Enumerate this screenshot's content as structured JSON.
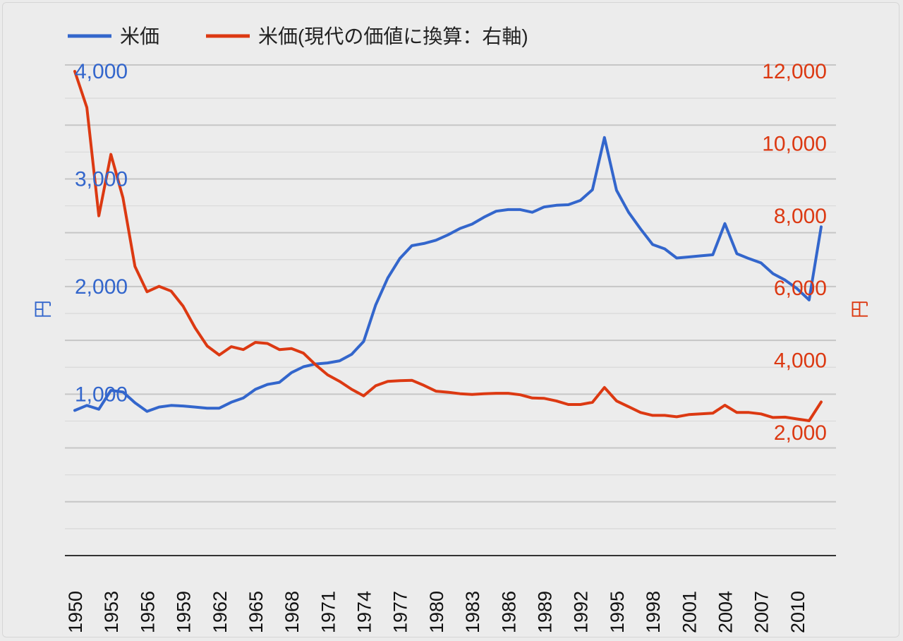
{
  "chart_data": {
    "type": "line",
    "legend": {
      "position": "top-left",
      "items": [
        {
          "label": "米価",
          "color": "#3366cc"
        },
        {
          "label": "米価(現代の価値に換算：右軸)",
          "color": "#dc3912"
        }
      ]
    },
    "x": [
      1950,
      1951,
      1952,
      1953,
      1954,
      1955,
      1956,
      1957,
      1958,
      1959,
      1960,
      1961,
      1962,
      1963,
      1964,
      1965,
      1966,
      1967,
      1968,
      1969,
      1970,
      1971,
      1972,
      1973,
      1974,
      1975,
      1976,
      1977,
      1978,
      1979,
      1980,
      1981,
      1982,
      1983,
      1984,
      1985,
      1986,
      1987,
      1988,
      1989,
      1990,
      1991,
      1992,
      1993,
      1994,
      1995,
      1996,
      1997,
      1998,
      1999,
      2000,
      2001,
      2002,
      2003,
      2004,
      2005,
      2006,
      2007,
      2008,
      2009,
      2010,
      2011,
      2012
    ],
    "x_tick_labels": [
      "1950",
      "1953",
      "1956",
      "1959",
      "1962",
      "1965",
      "1968",
      "1971",
      "1974",
      "1977",
      "1980",
      "1983",
      "1986",
      "1989",
      "1992",
      "1995",
      "1998",
      "2001",
      "2004",
      "2007",
      "2010"
    ],
    "y_left": {
      "label": "円",
      "ticks": [
        "1,000",
        "2,000",
        "3,000",
        "4,000"
      ],
      "range": [
        -500,
        4000
      ],
      "color": "#3366cc"
    },
    "y_right": {
      "label": "円",
      "ticks": [
        "2,000",
        "4,000",
        "6,000",
        "8,000",
        "10,000",
        "12,000"
      ],
      "range": [
        -1400,
        12000
      ],
      "color": "#dc3912"
    },
    "grid": true,
    "series": [
      {
        "name": "米価",
        "axis": "left",
        "color": "#3366cc",
        "values": [
          849,
          895,
          860,
          1035,
          1020,
          920,
          840,
          880,
          895,
          890,
          880,
          870,
          870,
          925,
          965,
          1045,
          1090,
          1110,
          1200,
          1255,
          1280,
          1290,
          1310,
          1370,
          1490,
          1830,
          2080,
          2260,
          2380,
          2400,
          2430,
          2480,
          2540,
          2580,
          2645,
          2700,
          2715,
          2715,
          2690,
          2740,
          2755,
          2760,
          2800,
          2900,
          3385,
          2895,
          2690,
          2535,
          2390,
          2350,
          2265,
          2275,
          2285,
          2295,
          2585,
          2305,
          2260,
          2220,
          2120,
          2060,
          1980,
          1875,
          2555
        ]
      },
      {
        "name": "米価(現代の価値に換算：右軸)",
        "axis": "right",
        "color": "#dc3912",
        "values": [
          12000,
          11000,
          8000,
          9700,
          8500,
          6600,
          5900,
          6050,
          5920,
          5500,
          4900,
          4400,
          4150,
          4380,
          4300,
          4500,
          4470,
          4300,
          4330,
          4200,
          3880,
          3600,
          3420,
          3200,
          3020,
          3300,
          3420,
          3440,
          3450,
          3310,
          3150,
          3120,
          3080,
          3060,
          3080,
          3090,
          3090,
          3050,
          2960,
          2950,
          2880,
          2780,
          2780,
          2840,
          3250,
          2880,
          2720,
          2560,
          2480,
          2480,
          2440,
          2500,
          2520,
          2540,
          2760,
          2560,
          2560,
          2520,
          2420,
          2430,
          2380,
          2330,
          2850
        ]
      }
    ]
  }
}
